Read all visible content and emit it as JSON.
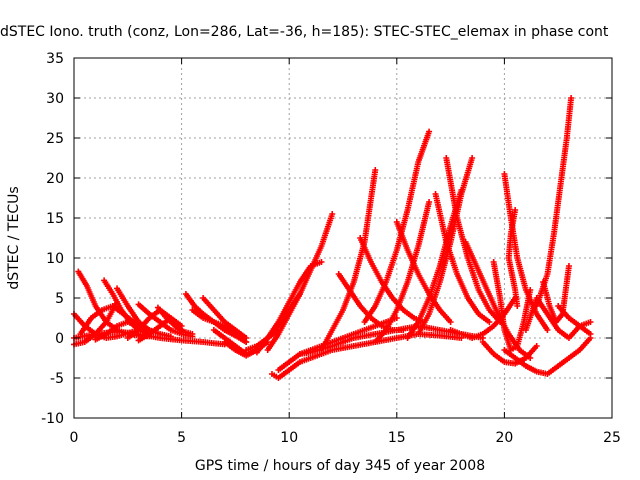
{
  "chart_data": {
    "type": "scatter",
    "title": "dSTEC Iono. truth (conz, Lon=286, Lat=-36, h=185): STEC-STEC_elemax in phase cont",
    "xlabel": "GPS time / hours of day 345 of year 2008",
    "ylabel": "dSTEC  / TECUs",
    "xlim": [
      0,
      25
    ],
    "ylim": [
      -10,
      35
    ],
    "xticks": [
      0,
      5,
      10,
      15,
      20,
      25
    ],
    "yticks": [
      -10,
      -5,
      0,
      5,
      10,
      15,
      20,
      25,
      30,
      35
    ],
    "grid": true,
    "marker": "plus",
    "color": "#ff0000",
    "series": [
      {
        "x": [
          0.0,
          0.5,
          1.0,
          1.5,
          2.0,
          2.5,
          3.0
        ],
        "y": [
          3.0,
          1.5,
          0.5,
          0.0,
          0.2,
          0.6,
          1.0
        ]
      },
      {
        "x": [
          0.0,
          0.5,
          1.0,
          1.5,
          2.0
        ],
        "y": [
          -0.8,
          -0.5,
          0.5,
          2.0,
          4.5
        ]
      },
      {
        "x": [
          0.2,
          0.6,
          1.0,
          1.5,
          2.0,
          2.5,
          3.0,
          3.5
        ],
        "y": [
          8.3,
          6.5,
          4.0,
          2.0,
          1.0,
          0.5,
          0.3,
          0.2
        ]
      },
      {
        "x": [
          0.3,
          0.8,
          1.3,
          1.8,
          2.3,
          3.0
        ],
        "y": [
          0.5,
          2.5,
          3.5,
          4.0,
          3.0,
          1.5
        ]
      },
      {
        "x": [
          0.0,
          1.0,
          2.0,
          3.0,
          4.0,
          5.0,
          6.0,
          7.0
        ],
        "y": [
          0.0,
          0.5,
          0.8,
          0.5,
          0.0,
          -0.3,
          -0.5,
          -0.8
        ]
      },
      {
        "x": [
          1.0,
          1.5,
          2.0,
          2.5,
          3.0,
          3.5
        ],
        "y": [
          -0.2,
          0.5,
          1.5,
          2.0,
          1.5,
          0.5
        ]
      },
      {
        "x": [
          1.4,
          1.8,
          2.2,
          2.6,
          3.0,
          3.4
        ],
        "y": [
          7.2,
          5.5,
          3.5,
          2.0,
          1.0,
          0.5
        ]
      },
      {
        "x": [
          2.0,
          2.5,
          3.0,
          3.5,
          4.0,
          4.5
        ],
        "y": [
          6.2,
          4.0,
          2.0,
          1.0,
          0.5,
          0.2
        ]
      },
      {
        "x": [
          2.5,
          3.0,
          3.5,
          4.0,
          4.5,
          5.0
        ],
        "y": [
          0.0,
          1.0,
          2.5,
          3.5,
          2.5,
          1.0
        ]
      },
      {
        "x": [
          3.0,
          3.5,
          4.0,
          4.5,
          5.0
        ],
        "y": [
          -0.3,
          0.5,
          1.5,
          2.5,
          1.5
        ]
      },
      {
        "x": [
          3.0,
          3.5,
          4.0,
          4.5,
          5.0,
          5.5
        ],
        "y": [
          4.2,
          3.0,
          2.0,
          1.0,
          0.5,
          0.2
        ]
      },
      {
        "x": [
          3.9,
          4.3,
          4.7,
          5.1,
          5.5
        ],
        "y": [
          3.8,
          2.5,
          1.5,
          0.8,
          0.5
        ]
      },
      {
        "x": [
          5.2,
          5.6,
          6.0,
          6.5,
          7.0,
          7.5,
          8.0
        ],
        "y": [
          5.5,
          4.0,
          3.0,
          2.0,
          1.0,
          0.3,
          -0.5
        ]
      },
      {
        "x": [
          5.5,
          6.0,
          6.5,
          7.0,
          7.5,
          8.0
        ],
        "y": [
          3.5,
          2.5,
          2.0,
          1.5,
          0.5,
          -0.5
        ]
      },
      {
        "x": [
          6.0,
          6.5,
          7.0,
          7.5,
          8.0
        ],
        "y": [
          5.0,
          3.5,
          2.0,
          1.0,
          0.0
        ]
      },
      {
        "x": [
          6.5,
          7.0,
          7.5,
          8.0,
          8.5,
          9.0
        ],
        "y": [
          1.0,
          0.0,
          -1.0,
          -2.0,
          -1.5,
          -0.5
        ]
      },
      {
        "x": [
          7.0,
          7.5,
          8.0,
          8.5,
          9.0,
          9.5
        ],
        "y": [
          -0.5,
          -1.5,
          -2.2,
          -1.5,
          0.0,
          1.0
        ]
      },
      {
        "x": [
          8.0,
          8.5,
          9.0,
          9.5,
          10.0,
          10.5
        ],
        "y": [
          -1.5,
          -1.0,
          0.0,
          1.5,
          3.5,
          5.5
        ]
      },
      {
        "x": [
          8.5,
          9.0,
          9.5,
          10.0,
          10.5,
          11.0,
          11.5
        ],
        "y": [
          -1.8,
          0.0,
          2.0,
          4.5,
          7.0,
          9.0,
          9.5
        ]
      },
      {
        "x": [
          9.0,
          9.5,
          10.0,
          10.5,
          11.0,
          11.5,
          12.0
        ],
        "y": [
          -1.5,
          0.5,
          3.0,
          5.5,
          8.5,
          11.5,
          15.5
        ]
      },
      {
        "x": [
          9.2,
          9.5,
          10.0,
          10.5,
          11.0,
          12.0,
          13.0,
          14.0,
          15.0,
          16.0,
          17.0,
          18.0
        ],
        "y": [
          -4.5,
          -5.0,
          -4.0,
          -3.0,
          -2.5,
          -1.5,
          -1.0,
          -0.5,
          0.0,
          0.5,
          0.3,
          0.0
        ]
      },
      {
        "x": [
          9.5,
          10.0,
          10.5,
          11.0,
          12.0,
          13.0,
          14.0,
          15.0
        ],
        "y": [
          -4.0,
          -3.0,
          -2.0,
          -1.5,
          -0.5,
          0.5,
          1.5,
          2.5
        ]
      },
      {
        "x": [
          10.5,
          11.0,
          12.0,
          13.0,
          14.0,
          15.0,
          16.0,
          17.0,
          18.0,
          19.0
        ],
        "y": [
          -2.0,
          -1.8,
          -1.0,
          0.0,
          0.5,
          1.0,
          1.5,
          1.0,
          0.5,
          0.0
        ]
      },
      {
        "x": [
          12.3,
          12.8,
          13.3,
          13.8,
          14.3,
          14.8,
          15.3
        ],
        "y": [
          8.0,
          6.0,
          4.0,
          2.5,
          1.5,
          1.0,
          1.0
        ]
      },
      {
        "x": [
          11.5,
          12.0,
          12.5,
          13.0,
          13.5,
          14.0
        ],
        "y": [
          -1.5,
          1.0,
          3.5,
          7.0,
          12.0,
          21.0
        ]
      },
      {
        "x": [
          13.3,
          13.8,
          14.3,
          14.8,
          15.3,
          15.8,
          16.2
        ],
        "y": [
          12.5,
          9.5,
          7.0,
          5.0,
          3.5,
          2.5,
          2.0
        ]
      },
      {
        "x": [
          13.5,
          14.0,
          14.5,
          15.0,
          15.5,
          16.0,
          16.5
        ],
        "y": [
          2.0,
          4.0,
          7.0,
          11.0,
          16.0,
          22.0,
          25.8
        ]
      },
      {
        "x": [
          14.0,
          14.5,
          15.0,
          15.5,
          16.0,
          16.5
        ],
        "y": [
          -0.5,
          1.0,
          3.5,
          7.0,
          11.5,
          17.0
        ]
      },
      {
        "x": [
          15.0,
          15.5,
          16.0,
          16.5,
          17.0,
          17.5
        ],
        "y": [
          14.5,
          11.0,
          8.0,
          5.5,
          3.5,
          2.0
        ]
      },
      {
        "x": [
          15.5,
          16.0,
          16.5,
          17.0,
          17.5,
          18.0
        ],
        "y": [
          0.0,
          2.0,
          5.0,
          9.0,
          14.0,
          18.5
        ]
      },
      {
        "x": [
          16.0,
          16.5,
          17.0,
          17.5,
          18.0,
          18.5
        ],
        "y": [
          0.5,
          3.0,
          7.0,
          12.0,
          18.0,
          22.5
        ]
      },
      {
        "x": [
          16.8,
          17.3,
          17.8,
          18.3,
          18.8,
          19.3
        ],
        "y": [
          18.0,
          12.0,
          8.0,
          5.0,
          3.0,
          2.0
        ]
      },
      {
        "x": [
          17.3,
          17.8,
          18.3,
          18.8,
          19.3,
          19.8
        ],
        "y": [
          22.5,
          15.0,
          10.0,
          6.0,
          3.5,
          2.0
        ]
      },
      {
        "x": [
          17.5,
          18.0,
          18.5,
          19.0,
          19.5,
          20.0,
          20.5
        ],
        "y": [
          1.0,
          0.5,
          0.0,
          0.5,
          1.5,
          3.0,
          5.0
        ]
      },
      {
        "x": [
          18.2,
          18.7,
          19.2,
          19.7,
          20.2,
          20.7,
          21.2
        ],
        "y": [
          12.0,
          9.0,
          6.0,
          3.0,
          0.5,
          -1.5,
          -2.5
        ]
      },
      {
        "x": [
          19.0,
          19.5,
          20.0,
          20.5,
          21.0,
          21.5
        ],
        "y": [
          -0.5,
          -2.0,
          -3.0,
          -3.2,
          -2.5,
          -1.0
        ]
      },
      {
        "x": [
          19.5,
          19.8,
          20.0,
          20.3,
          20.6,
          20.9,
          21.2
        ],
        "y": [
          9.5,
          5.0,
          1.0,
          -1.5,
          -1.0,
          2.0,
          6.0
        ]
      },
      {
        "x": [
          20.0,
          20.3,
          20.6,
          21.0,
          21.5,
          22.0
        ],
        "y": [
          20.5,
          15.0,
          10.0,
          6.0,
          3.0,
          1.0
        ]
      },
      {
        "x": [
          20.0,
          20.5,
          21.0,
          21.5,
          22.0,
          22.5,
          23.0,
          23.5,
          24.0
        ],
        "y": [
          -1.5,
          -2.5,
          -3.5,
          -4.2,
          -4.5,
          -3.5,
          -2.5,
          -1.5,
          0.0
        ]
      },
      {
        "x": [
          20.5,
          20.3,
          20.2,
          20.5,
          20.6
        ],
        "y": [
          16.0,
          13.0,
          10.0,
          6.0,
          4.0
        ]
      },
      {
        "x": [
          21.0,
          21.5,
          22.0,
          22.5,
          23.0,
          23.5,
          24.0
        ],
        "y": [
          1.0,
          5.0,
          3.0,
          1.0,
          0.0,
          1.5,
          2.0
        ]
      },
      {
        "x": [
          21.8,
          22.1,
          22.4,
          22.7,
          23.0
        ],
        "y": [
          7.0,
          4.0,
          2.0,
          3.0,
          9.0
        ]
      },
      {
        "x": [
          21.5,
          22.0,
          22.3,
          22.6,
          22.9,
          23.1
        ],
        "y": [
          4.0,
          8.0,
          13.0,
          19.0,
          25.0,
          30.0
        ]
      },
      {
        "x": [
          22.5,
          23.0,
          23.5,
          24.0
        ],
        "y": [
          4.0,
          2.5,
          1.5,
          0.5
        ]
      }
    ]
  }
}
